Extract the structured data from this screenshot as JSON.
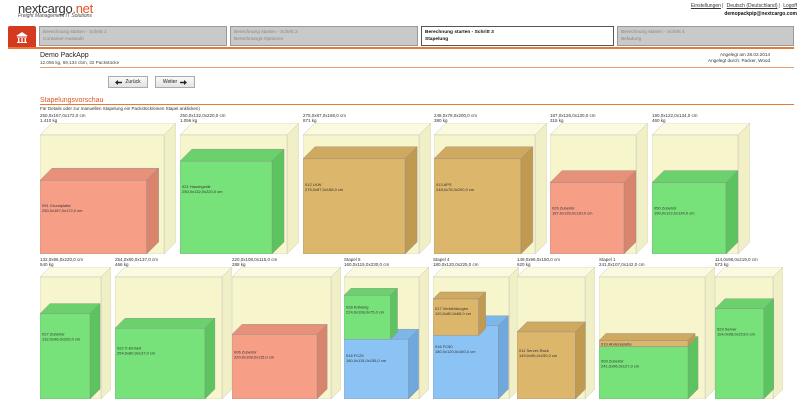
{
  "logo": {
    "name": "nextcargo",
    "tld": ".net",
    "tagline": "Freight Management IT Solutions"
  },
  "top_links": [
    "Einstellungen",
    "Deutsch (Deutschland)",
    "Logoff"
  ],
  "user_email": "demopackpip@nextcargo.com",
  "steps": [
    {
      "title": "Berechnung starten - Schritt 1",
      "sub": "Container-Auswahl",
      "active": false
    },
    {
      "title": "Berechnung starten - Schritt 2",
      "sub": "Berechnungs-Optionen",
      "active": false
    },
    {
      "title": "Berechnung starten - Schritt 3",
      "sub": "Stapelung",
      "active": true
    },
    {
      "title": "Berechnung starten - Schritt 4",
      "sub": "Beladung",
      "active": false
    }
  ],
  "page": {
    "title": "Demo PackApp",
    "info": "12.056 kg, 69,134 cbm, 32 Packstücke",
    "created": "Angelegt am 28.02.2014",
    "created_by": "Angelegt durch: Packer, Wood"
  },
  "buttons": {
    "back": "Zurück",
    "next": "Weiter"
  },
  "section": {
    "title": "Stapelungsvorschau",
    "hint": "Für Details oder zur manuellen Stapelung ein Packstück/einen Stapel anklicken)"
  },
  "colors": {
    "accent": "#e2541f",
    "ceiling": "#f7f5cc",
    "salmon": "#f79e86",
    "green": "#77e27a",
    "tan": "#dcb66b",
    "blue": "#8cc3f5"
  },
  "row1": [
    {
      "caption": "250,0x167,0x172,0 cm",
      "weight": "1.410 kg",
      "boxes": [
        {
          "label": "091 Grundplatte",
          "dims": "250,0x167,0x172,0 cm",
          "color": "salmon"
        }
      ]
    },
    {
      "caption": "250,0x132,0x220,0 cm",
      "weight": "1.056 kg",
      "boxes": [
        {
          "label": "021 Haushgerät",
          "dims": "250,0x132,0x220,0 cm",
          "color": "green"
        }
      ]
    },
    {
      "caption": "275,0x87,0x168,0 cm",
      "weight": "871 kg",
      "boxes": [
        {
          "label": "012 LKW",
          "dims": "275,0x87,0x168,0 cm",
          "color": "tan"
        }
      ]
    },
    {
      "caption": "248,0x78,0x200,0 cm",
      "weight": "380 kg",
      "boxes": [
        {
          "label": "013 APS",
          "dims": "248,0x78,0x200,0 cm",
          "color": "tan"
        }
      ]
    },
    {
      "caption": "187,0x126,0x130,0 cm",
      "weight": "315 kg",
      "boxes": [
        {
          "label": "026 Zubehör",
          "dims": "187,0x126,0x130,0 cm",
          "color": "salmon"
        }
      ]
    },
    {
      "caption": "190,0x122,0x134,0 cm",
      "weight": "460 kg",
      "boxes": [
        {
          "label": "050 Zubehör",
          "dims": "190,0x122,0x134,0 cm",
          "color": "green"
        }
      ]
    }
  ],
  "row2": [
    {
      "caption": "132,0x96,0x220,0 cm",
      "weight": "540 kg",
      "stack": "",
      "boxes": [
        {
          "label": "027 Zubehör",
          "dims": "132,0x96,0x220,0 cm",
          "color": "green"
        }
      ]
    },
    {
      "caption": "254,0x80,0x137,0 cm",
      "weight": "466 kg",
      "stack": "",
      "boxes": [
        {
          "label": "022 X-Einheit",
          "dims": "254,0x80,0x137,0 cm",
          "color": "green"
        }
      ]
    },
    {
      "caption": "220,0x108,0x115,0 cm",
      "weight": "288 kg",
      "stack": "",
      "boxes": [
        {
          "label": "006 Zubehör",
          "dims": "220,0x108,0x115,0 cm",
          "color": "salmon"
        }
      ]
    },
    {
      "caption": "160,0x115,0x230,0 cm",
      "weight": "",
      "stack": "Stapel 5",
      "boxes": [
        {
          "label": "028 Kühlung",
          "dims": "224,0x108,0x75,0 cm",
          "color": "green"
        },
        {
          "label": "018 FC25",
          "dims": "160,0x115,0x155,0 cm",
          "color": "blue"
        }
      ]
    },
    {
      "caption": "180,0x120,0x225,0 cm",
      "weight": "",
      "stack": "Stapel 4",
      "boxes": [
        {
          "label": "017 Verkleidungen",
          "dims": "120,0x80,0x65,0 cm",
          "color": "tan"
        },
        {
          "label": "016 FC50",
          "dims": "180,0x120,0x160,0 cm",
          "color": "blue"
        }
      ]
    },
    {
      "caption": "149,0x96,0x150,0 cm",
      "weight": "620 kg",
      "stack": "",
      "boxes": [
        {
          "label": "011 Server-Rack",
          "dims": "149,0x96,0x150,0 cm",
          "color": "tan"
        }
      ]
    },
    {
      "caption": "241,0x107,0x142,0 cm",
      "weight": "",
      "stack": "Stapel 1",
      "boxes": [
        {
          "label": "019 Abdeckplatte",
          "dims": "",
          "color": "tan"
        },
        {
          "label": "009 Zubehör",
          "dims": "241,0x96,0x127,0 cm",
          "color": "green"
        }
      ]
    },
    {
      "caption": "114,0x98,0x219,0 cm",
      "weight": "573 kg",
      "stack": "",
      "boxes": [
        {
          "label": "023 Server",
          "dims": "114,0x98,0x219,0 cm",
          "color": "green"
        }
      ]
    }
  ]
}
